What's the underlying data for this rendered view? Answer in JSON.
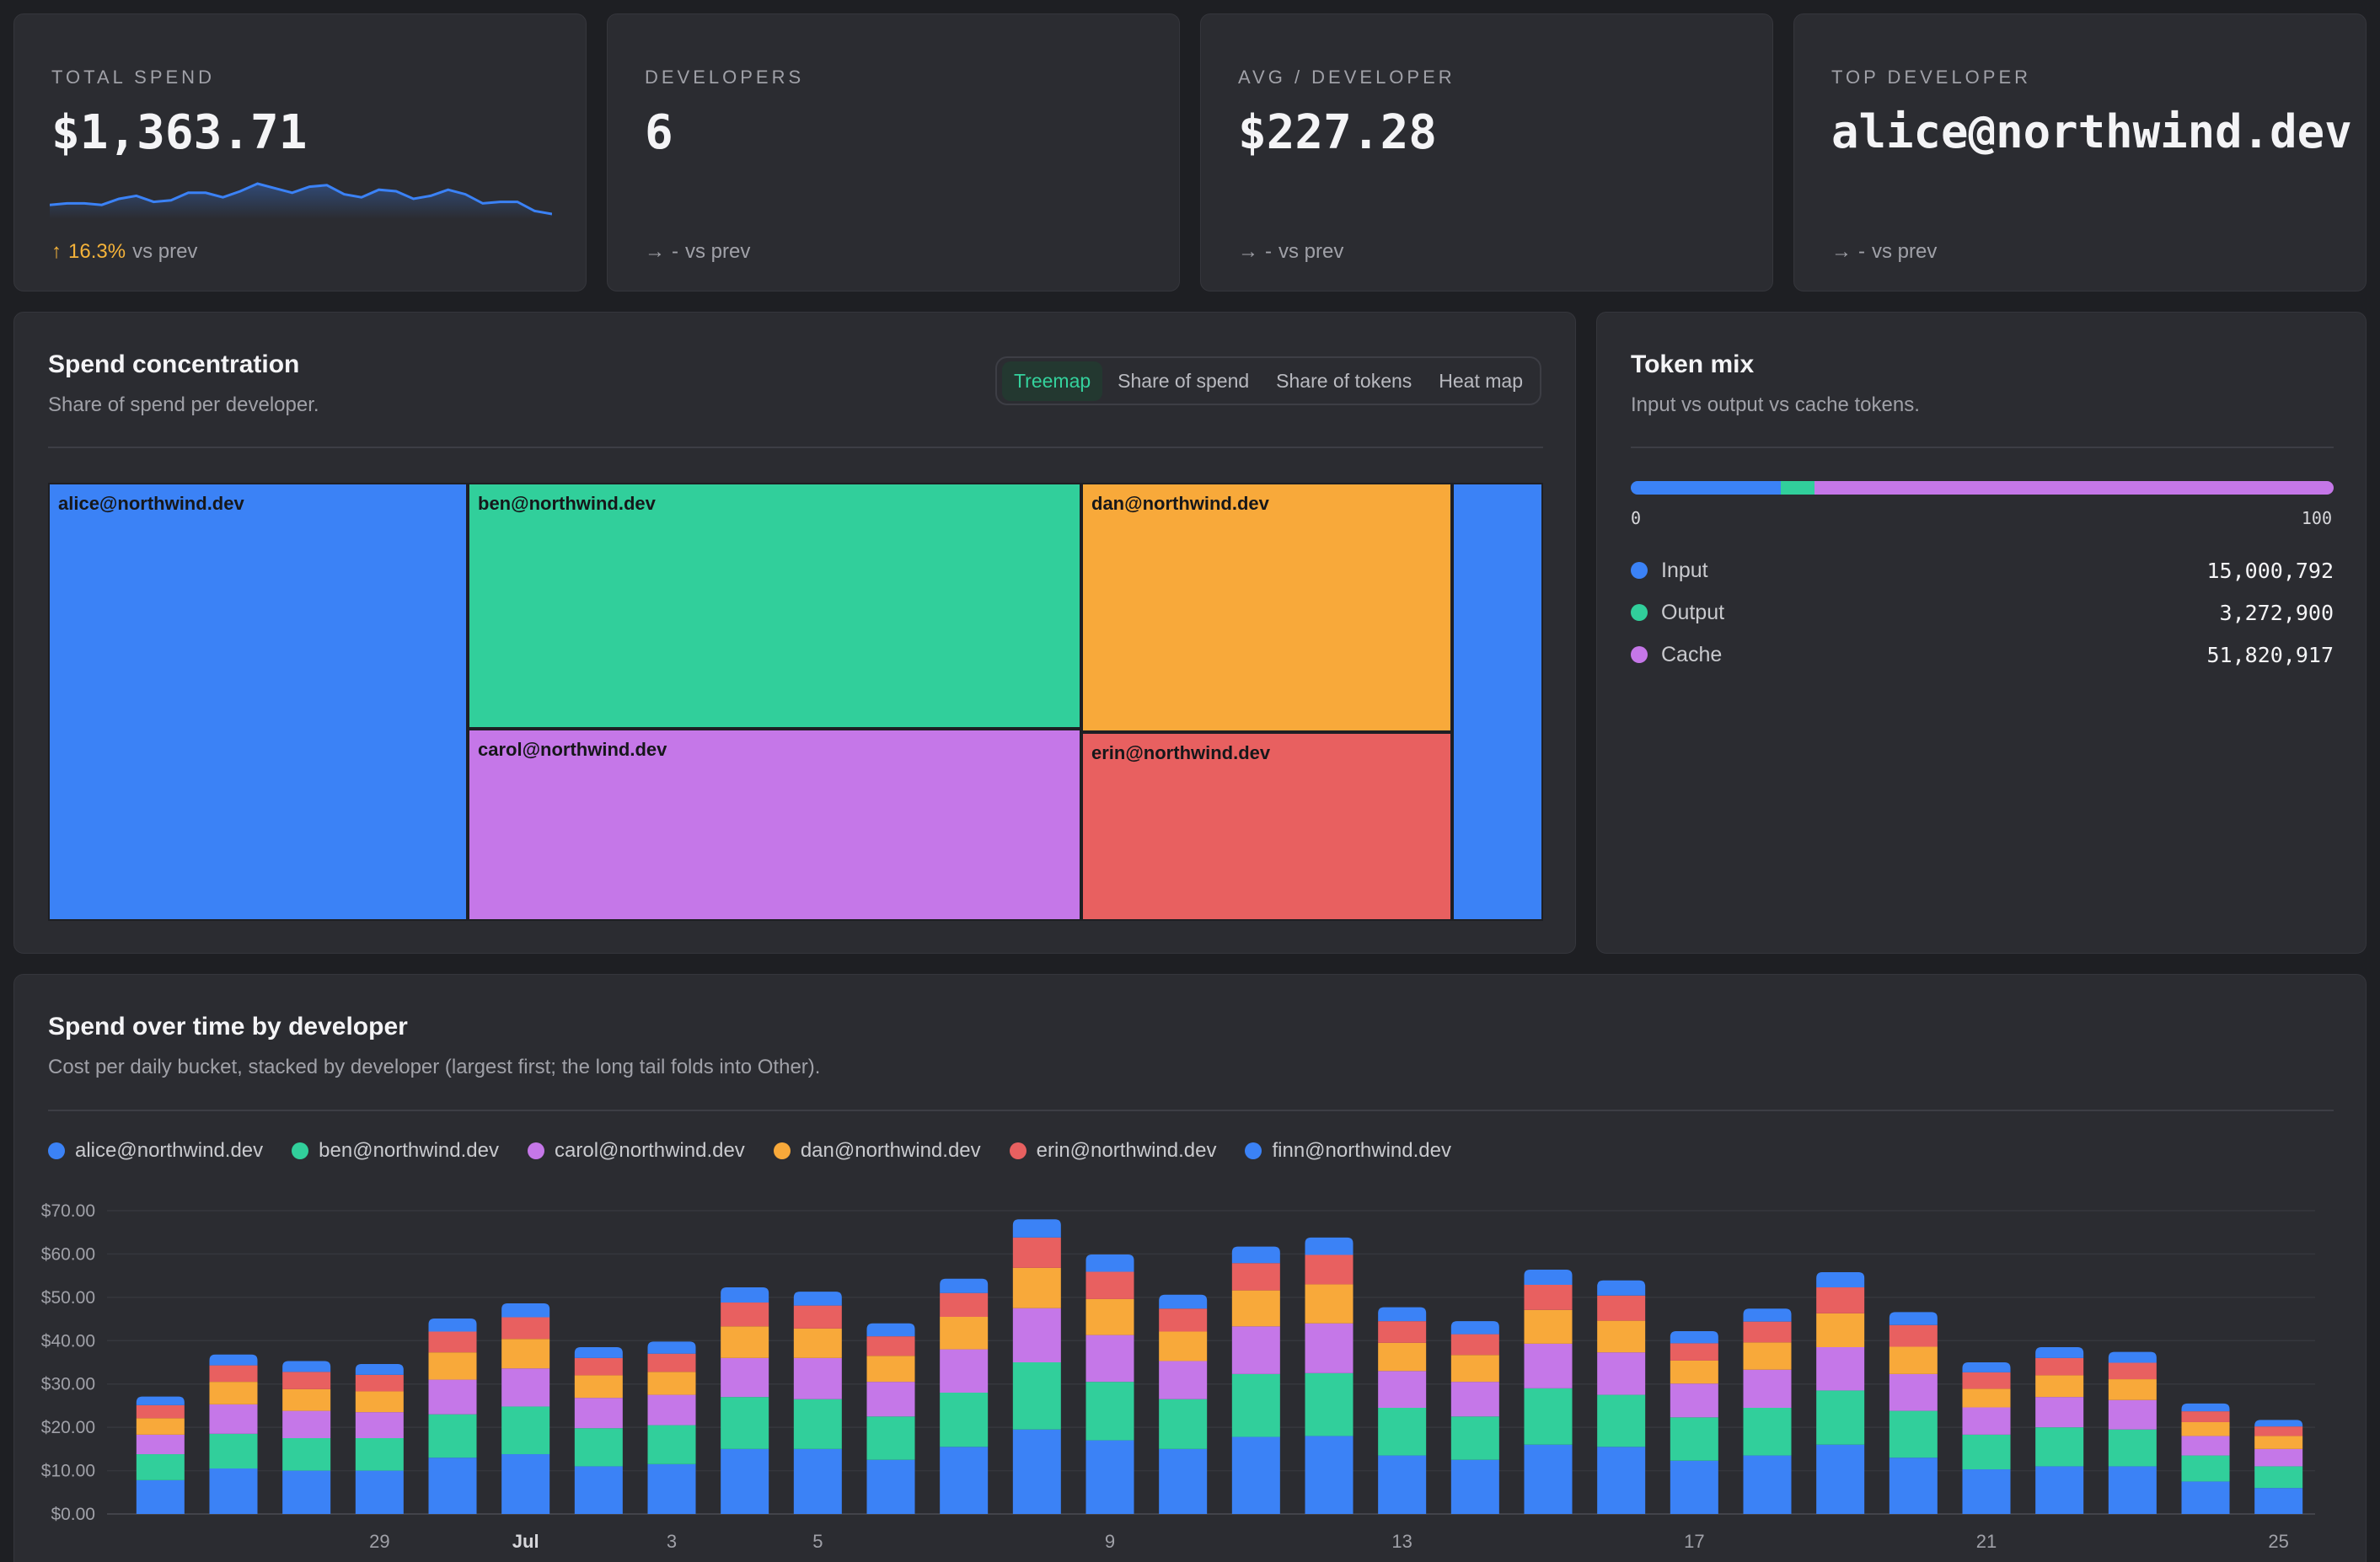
{
  "kpis": [
    {
      "label": "TOTAL SPEND",
      "value": "$1,363.71",
      "delta_arrow": "↑",
      "delta_pct": "16.3%",
      "delta_suffix": "vs prev",
      "has_sparkline": true
    },
    {
      "label": "DEVELOPERS",
      "value": "6",
      "delta_arrow": "→",
      "delta_pct": "-",
      "delta_suffix": "vs prev"
    },
    {
      "label": "AVG / DEVELOPER",
      "value": "$227.28",
      "delta_arrow": "→",
      "delta_pct": "-",
      "delta_suffix": "vs prev"
    },
    {
      "label": "TOP DEVELOPER",
      "value": "alice@northwind.dev",
      "delta_arrow": "→",
      "delta_pct": "-",
      "delta_suffix": "vs prev"
    }
  ],
  "colors": {
    "alice": "#3b82f6",
    "ben": "#31cf9b",
    "carol": "#c577e8",
    "dan": "#f8a93a",
    "erin": "#e86060",
    "finn": "#3b82f6",
    "input": "#3b82f6",
    "output": "#31cf9b",
    "cache": "#c577e8"
  },
  "concentration": {
    "title": "Spend concentration",
    "subtitle": "Share of spend per developer.",
    "tabs": [
      {
        "label": "Treemap",
        "active": true
      },
      {
        "label": "Share of spend",
        "active": false
      },
      {
        "label": "Share of tokens",
        "active": false
      },
      {
        "label": "Heat map",
        "active": false
      }
    ],
    "treemap": [
      {
        "label": "alice@northwind.dev",
        "color": "#3b82f6"
      },
      {
        "label": "ben@northwind.dev",
        "color": "#31cf9b"
      },
      {
        "label": "carol@northwind.dev",
        "color": "#c577e8"
      },
      {
        "label": "dan@northwind.dev",
        "color": "#f8a93a"
      },
      {
        "label": "erin@northwind.dev",
        "color": "#e86060"
      },
      {
        "label": "",
        "color": "#3b82f6"
      }
    ]
  },
  "token_mix": {
    "title": "Token mix",
    "subtitle": "Input vs output vs cache tokens.",
    "scale_min": "0",
    "scale_max": "100",
    "rows": [
      {
        "label": "Input",
        "value": "15,000,792",
        "color": "#3b82f6"
      },
      {
        "label": "Output",
        "value": "3,272,900",
        "color": "#31cf9b"
      },
      {
        "label": "Cache",
        "value": "51,820,917",
        "color": "#c577e8"
      }
    ]
  },
  "spend_over_time": {
    "title": "Spend over time by developer",
    "subtitle": "Cost per daily bucket, stacked by developer (largest first; the long tail folds into Other).",
    "legend": [
      {
        "label": "alice@northwind.dev",
        "color": "#3b82f6"
      },
      {
        "label": "ben@northwind.dev",
        "color": "#31cf9b"
      },
      {
        "label": "carol@northwind.dev",
        "color": "#c577e8"
      },
      {
        "label": "dan@northwind.dev",
        "color": "#f8a93a"
      },
      {
        "label": "erin@northwind.dev",
        "color": "#e86060"
      },
      {
        "label": "finn@northwind.dev",
        "color": "#3b82f6"
      }
    ]
  },
  "chart_data": {
    "type": "bar",
    "stacked": true,
    "title": "Spend over time by developer",
    "ylim": [
      0,
      70
    ],
    "yticks": [
      "$0.00",
      "$10.00",
      "$20.00",
      "$30.00",
      "$40.00",
      "$50.00",
      "$60.00",
      "$70.00"
    ],
    "xtick_labels": [
      {
        "index": 3,
        "label": "29"
      },
      {
        "index": 5,
        "label": "Jul",
        "bold": true
      },
      {
        "index": 7,
        "label": "3"
      },
      {
        "index": 9,
        "label": "5"
      },
      {
        "index": 13,
        "label": "9"
      },
      {
        "index": 17,
        "label": "13"
      },
      {
        "index": 21,
        "label": "17"
      },
      {
        "index": 25,
        "label": "21"
      },
      {
        "index": 29,
        "label": "25"
      }
    ],
    "categories": [
      "Jun 26",
      "Jun 27",
      "Jun 28",
      "Jun 29",
      "Jun 30",
      "Jul 1",
      "Jul 2",
      "Jul 3",
      "Jul 4",
      "Jul 5",
      "Jul 6",
      "Jul 7",
      "Jul 8",
      "Jul 9",
      "Jul 10",
      "Jul 11",
      "Jul 12",
      "Jul 13",
      "Jul 14",
      "Jul 15",
      "Jul 16",
      "Jul 17",
      "Jul 18",
      "Jul 19",
      "Jul 20",
      "Jul 21",
      "Jul 22",
      "Jul 23",
      "Jul 24",
      "Jul 25"
    ],
    "series": [
      {
        "name": "alice@northwind.dev",
        "values": [
          7.8,
          10.5,
          10.0,
          10.0,
          13.0,
          13.8,
          11.0,
          11.5,
          15.0,
          15.0,
          12.5,
          15.5,
          19.5,
          17.0,
          15.0,
          17.8,
          18.0,
          13.5,
          12.5,
          16.0,
          15.5,
          12.3,
          13.5,
          16.0,
          13.0,
          10.3,
          11.0,
          11.0,
          7.5,
          6.0
        ]
      },
      {
        "name": "ben@northwind.dev",
        "values": [
          6.0,
          8.0,
          7.5,
          7.5,
          10.0,
          11.0,
          8.8,
          9.0,
          12.0,
          11.5,
          10.0,
          12.5,
          15.5,
          13.5,
          11.5,
          14.5,
          14.5,
          11.0,
          10.0,
          13.0,
          12.0,
          10.0,
          11.0,
          12.5,
          10.8,
          8.0,
          9.0,
          8.5,
          6.0,
          5.0
        ]
      },
      {
        "name": "carol@northwind.dev",
        "values": [
          4.5,
          6.8,
          6.3,
          6.0,
          8.0,
          8.8,
          7.0,
          7.0,
          9.0,
          9.5,
          8.0,
          10.0,
          12.5,
          10.8,
          8.8,
          11.0,
          11.5,
          8.5,
          8.0,
          10.3,
          9.8,
          7.8,
          8.8,
          10.0,
          8.5,
          6.3,
          7.0,
          6.8,
          4.5,
          4.0
        ]
      },
      {
        "name": "dan@northwind.dev",
        "values": [
          3.8,
          5.2,
          5.0,
          4.8,
          6.3,
          6.8,
          5.2,
          5.3,
          7.3,
          6.8,
          6.0,
          7.5,
          9.3,
          8.3,
          6.8,
          8.3,
          9.0,
          6.5,
          6.2,
          7.8,
          7.3,
          5.3,
          6.3,
          7.8,
          6.3,
          4.3,
          5.0,
          4.8,
          3.2,
          3.0
        ]
      },
      {
        "name": "erin@northwind.dev",
        "values": [
          3.0,
          3.8,
          4.0,
          3.8,
          4.8,
          5.0,
          4.0,
          4.2,
          5.5,
          5.3,
          4.5,
          5.5,
          7.0,
          6.3,
          5.3,
          6.3,
          6.8,
          5.0,
          4.8,
          5.8,
          5.8,
          4.0,
          4.8,
          6.0,
          5.0,
          3.8,
          4.0,
          3.8,
          2.5,
          2.2
        ]
      },
      {
        "name": "finn@northwind.dev",
        "values": [
          2.0,
          2.5,
          2.5,
          2.5,
          3.0,
          3.2,
          2.5,
          2.8,
          3.5,
          3.2,
          3.0,
          3.3,
          4.2,
          4.0,
          3.2,
          3.8,
          4.0,
          3.2,
          3.0,
          3.5,
          3.5,
          2.8,
          3.0,
          3.5,
          3.0,
          2.3,
          2.5,
          2.5,
          1.8,
          1.5
        ]
      }
    ],
    "sparkline": {
      "values": [
        18,
        19,
        19,
        18,
        22,
        24,
        20,
        21,
        26,
        26,
        23,
        27,
        32,
        29,
        26,
        30,
        31,
        25,
        23,
        28,
        27,
        22,
        24,
        28,
        25,
        19,
        20,
        20,
        14,
        12
      ]
    },
    "token_mix_pct": {
      "input": 21.4,
      "output": 4.7,
      "cache": 73.9
    }
  }
}
